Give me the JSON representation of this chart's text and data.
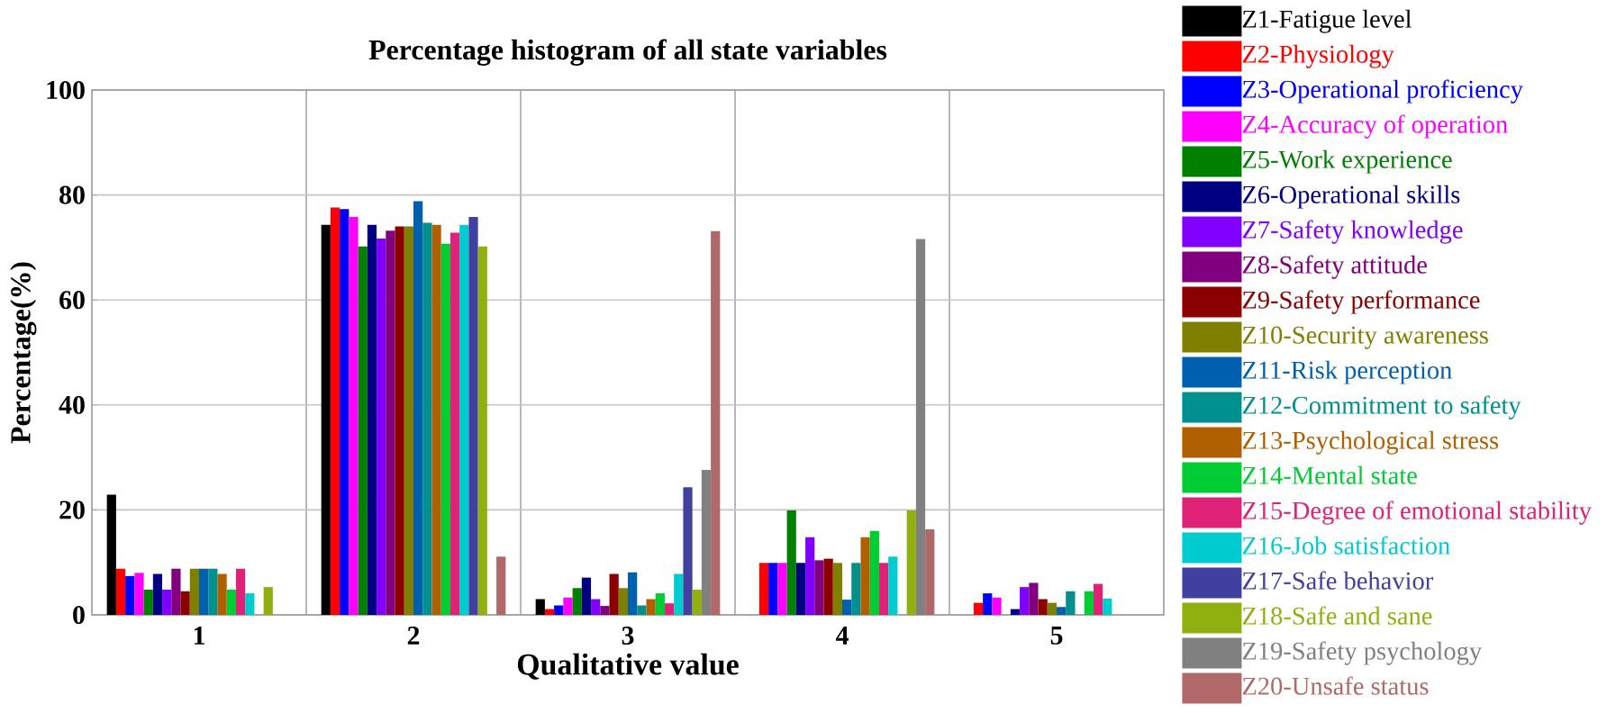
{
  "chart_data": {
    "type": "bar",
    "title": "Percentage histogram of all state variables",
    "xlabel": "Qualitative value",
    "ylabel": "Percentage(%)",
    "categories": [
      "1",
      "2",
      "3",
      "4",
      "5"
    ],
    "ylim": [
      0,
      100
    ],
    "yticks": [
      0,
      20,
      40,
      60,
      80,
      100
    ],
    "grid": true,
    "legend": "right",
    "series": [
      {
        "name": "Z1-Fatigue level",
        "color": "#000000",
        "values": [
          22.9,
          74.3,
          3.0,
          0,
          0
        ]
      },
      {
        "name": "Z2-Physiology",
        "color": "#ff0000",
        "values": [
          8.8,
          77.6,
          1.1,
          9.9,
          2.3
        ]
      },
      {
        "name": "Z3-Operational proficiency",
        "color": "#0000ff",
        "values": [
          7.4,
          77.3,
          1.8,
          9.9,
          4.1
        ]
      },
      {
        "name": "Z4-Accuracy of operation",
        "color": "#ff00ff",
        "values": [
          8.0,
          75.8,
          3.3,
          9.9,
          3.3
        ]
      },
      {
        "name": "Z5-Work experience",
        "color": "#008000",
        "values": [
          4.8,
          70.2,
          5.1,
          19.9,
          0
        ]
      },
      {
        "name": "Z6-Operational skills",
        "color": "#000080",
        "values": [
          7.8,
          74.3,
          7.1,
          9.9,
          1.1
        ]
      },
      {
        "name": "Z7-Safety knowledge",
        "color": "#8000ff",
        "values": [
          4.8,
          71.7,
          3.0,
          14.8,
          5.3
        ]
      },
      {
        "name": "Z8-Safety attitude",
        "color": "#800080",
        "values": [
          8.8,
          73.2,
          1.7,
          10.4,
          6.1
        ]
      },
      {
        "name": "Z9-Safety performance",
        "color": "#8b0000",
        "values": [
          4.5,
          74.0,
          7.8,
          10.7,
          3.0
        ]
      },
      {
        "name": "Z10-Security awareness",
        "color": "#808000",
        "values": [
          8.8,
          74.0,
          5.1,
          9.9,
          2.3
        ]
      },
      {
        "name": "Z11-Risk perception",
        "color": "#0060b0",
        "values": [
          8.8,
          78.8,
          8.1,
          2.9,
          1.5
        ]
      },
      {
        "name": "Z12-Commitment to safety",
        "color": "#009090",
        "values": [
          8.8,
          74.7,
          1.8,
          9.9,
          4.5
        ]
      },
      {
        "name": "Z13-Psychological stress",
        "color": "#b06000",
        "values": [
          7.8,
          74.3,
          3.0,
          14.8,
          0
        ]
      },
      {
        "name": "Z14-Mental state",
        "color": "#00cc33",
        "values": [
          4.8,
          70.7,
          4.1,
          16.0,
          4.5
        ]
      },
      {
        "name": "Z15-Degree of emotional stability",
        "color": "#dd2277",
        "values": [
          8.8,
          72.8,
          2.2,
          9.9,
          5.9
        ]
      },
      {
        "name": "Z16-Job satisfaction",
        "color": "#00ccd0",
        "values": [
          4.1,
          74.3,
          7.8,
          11.1,
          3.1
        ]
      },
      {
        "name": "Z17-Safe behavior",
        "color": "#4040a0",
        "values": [
          0,
          75.8,
          24.3,
          0,
          0
        ]
      },
      {
        "name": "Z18-Safe and sane",
        "color": "#90b010",
        "values": [
          5.3,
          70.2,
          4.8,
          19.9,
          0
        ]
      },
      {
        "name": "Z19-Safety psychology",
        "color": "#808080",
        "values": [
          0,
          0,
          27.6,
          71.6,
          0
        ]
      },
      {
        "name": "Z20-Unsafe status",
        "color": "#b06868",
        "values": [
          0,
          11.1,
          73.1,
          16.3,
          0
        ]
      }
    ]
  }
}
